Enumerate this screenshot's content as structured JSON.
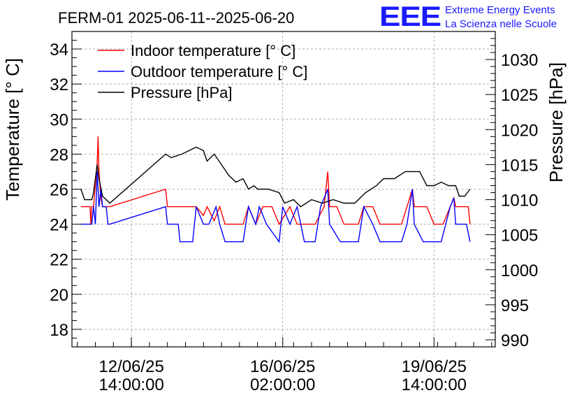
{
  "chart_data": {
    "type": "line",
    "title": "FERM-01 2025-06-11--2025-06-20",
    "logo": {
      "text": "EEE",
      "line1": "Extreme Energy Events",
      "line2": "La Scienza nelle Scuole",
      "color": "#1a1aff"
    },
    "xlabel": "",
    "ylabel_left": "Temperature [° C]",
    "ylabel_right": "Pressure [hPa]",
    "ylim_left": [
      17,
      35
    ],
    "ylim_right": [
      989,
      1034
    ],
    "yticks_left": [
      18,
      20,
      22,
      24,
      26,
      28,
      30,
      32,
      34
    ],
    "yticks_right": [
      990,
      995,
      1000,
      1005,
      1010,
      1015,
      1020,
      1025,
      1030
    ],
    "xlim": [
      "2025-06-11 05:00",
      "2025-06-21 00:00"
    ],
    "xticks": [
      {
        "x": "2025-06-12 14:00",
        "line1": "12/06/25",
        "line2": "14:00:00"
      },
      {
        "x": "2025-06-16 02:00",
        "line1": "16/06/25",
        "line2": "02:00:00"
      },
      {
        "x": "2025-06-19 14:00",
        "line1": "19/06/25",
        "line2": "14:00:00"
      }
    ],
    "grid": true,
    "legend_position": "top-left",
    "series": [
      {
        "name": "Indoor temperature [° C]",
        "axis": "left",
        "color": "#ff0000",
        "points": [
          [
            "2025-06-11 10:00",
            25
          ],
          [
            "2025-06-11 15:00",
            25
          ],
          [
            "2025-06-11 15:30",
            24
          ],
          [
            "2025-06-11 16:00",
            25
          ],
          [
            "2025-06-11 17:00",
            25
          ],
          [
            "2025-06-11 19:00",
            27.5
          ],
          [
            "2025-06-11 19:30",
            29
          ],
          [
            "2025-06-11 20:00",
            27
          ],
          [
            "2025-06-11 21:00",
            25.5
          ],
          [
            "2025-06-11 22:00",
            25
          ],
          [
            "2025-06-12 00:00",
            25
          ],
          [
            "2025-06-12 02:00",
            25
          ],
          [
            "2025-06-13 09:00",
            26
          ],
          [
            "2025-06-13 10:00",
            25
          ],
          [
            "2025-06-13 16:00",
            25
          ],
          [
            "2025-06-13 17:00",
            25
          ],
          [
            "2025-06-14 02:00",
            25
          ],
          [
            "2025-06-14 06:00",
            24.5
          ],
          [
            "2025-06-14 08:00",
            25
          ],
          [
            "2025-06-14 12:00",
            24.2
          ],
          [
            "2025-06-14 15:00",
            25
          ],
          [
            "2025-06-14 18:00",
            24
          ],
          [
            "2025-06-15 04:00",
            24
          ],
          [
            "2025-06-15 07:00",
            25
          ],
          [
            "2025-06-15 11:00",
            24
          ],
          [
            "2025-06-15 15:00",
            25
          ],
          [
            "2025-06-15 20:00",
            25
          ],
          [
            "2025-06-16 00:00",
            24
          ],
          [
            "2025-06-16 06:00",
            25
          ],
          [
            "2025-06-16 10:00",
            24
          ],
          [
            "2025-06-16 16:00",
            24
          ],
          [
            "2025-06-16 20:00",
            24
          ],
          [
            "2025-06-17 01:00",
            25
          ],
          [
            "2025-06-17 03:00",
            27
          ],
          [
            "2025-06-17 04:00",
            25
          ],
          [
            "2025-06-17 08:00",
            25
          ],
          [
            "2025-06-17 12:00",
            24
          ],
          [
            "2025-06-17 20:00",
            24
          ],
          [
            "2025-06-17 23:00",
            25
          ],
          [
            "2025-06-18 04:00",
            25
          ],
          [
            "2025-06-18 08:00",
            24
          ],
          [
            "2025-06-18 20:00",
            24
          ],
          [
            "2025-06-18 23:00",
            25
          ],
          [
            "2025-06-19 02:00",
            26
          ],
          [
            "2025-06-19 03:00",
            25
          ],
          [
            "2025-06-19 10:00",
            25
          ],
          [
            "2025-06-19 14:00",
            24
          ],
          [
            "2025-06-19 19:00",
            24
          ],
          [
            "2025-06-19 23:00",
            25
          ],
          [
            "2025-06-20 01:00",
            25.5
          ],
          [
            "2025-06-20 02:00",
            25
          ],
          [
            "2025-06-20 09:00",
            25
          ],
          [
            "2025-06-20 10:00",
            24
          ]
        ]
      },
      {
        "name": "Outdoor temperature [° C]",
        "axis": "left",
        "color": "#0000ff",
        "points": [
          [
            "2025-06-11 10:00",
            24
          ],
          [
            "2025-06-11 16:00",
            24
          ],
          [
            "2025-06-11 17:00",
            25
          ],
          [
            "2025-06-11 18:00",
            24
          ],
          [
            "2025-06-11 19:00",
            27
          ],
          [
            "2025-06-11 20:00",
            25
          ],
          [
            "2025-06-11 21:00",
            26
          ],
          [
            "2025-06-11 22:00",
            25
          ],
          [
            "2025-06-12 00:00",
            25
          ],
          [
            "2025-06-12 01:00",
            24
          ],
          [
            "2025-06-12 02:00",
            24
          ],
          [
            "2025-06-13 09:00",
            25
          ],
          [
            "2025-06-13 10:00",
            24
          ],
          [
            "2025-06-13 16:00",
            24
          ],
          [
            "2025-06-13 17:00",
            23
          ],
          [
            "2025-06-14 00:00",
            23
          ],
          [
            "2025-06-14 02:00",
            25
          ],
          [
            "2025-06-14 06:00",
            24
          ],
          [
            "2025-06-14 09:00",
            24
          ],
          [
            "2025-06-14 13:00",
            25
          ],
          [
            "2025-06-14 15:00",
            24
          ],
          [
            "2025-06-14 18:00",
            23
          ],
          [
            "2025-06-15 04:00",
            23
          ],
          [
            "2025-06-15 07:00",
            25
          ],
          [
            "2025-06-15 11:00",
            24
          ],
          [
            "2025-06-15 13:00",
            25
          ],
          [
            "2025-06-15 17:00",
            24
          ],
          [
            "2025-06-16 00:00",
            23
          ],
          [
            "2025-06-16 02:00",
            25
          ],
          [
            "2025-06-16 06:00",
            24
          ],
          [
            "2025-06-16 10:00",
            25
          ],
          [
            "2025-06-16 14:00",
            23
          ],
          [
            "2025-06-16 20:00",
            23
          ],
          [
            "2025-06-16 23:00",
            25
          ],
          [
            "2025-06-17 03:00",
            26
          ],
          [
            "2025-06-17 04:00",
            24
          ],
          [
            "2025-06-17 10:00",
            23
          ],
          [
            "2025-06-17 20:00",
            23
          ],
          [
            "2025-06-17 23:00",
            25
          ],
          [
            "2025-06-18 04:00",
            24
          ],
          [
            "2025-06-18 08:00",
            23
          ],
          [
            "2025-06-18 20:00",
            23
          ],
          [
            "2025-06-18 23:00",
            24
          ],
          [
            "2025-06-19 02:00",
            26
          ],
          [
            "2025-06-19 03:00",
            24
          ],
          [
            "2025-06-19 08:00",
            23
          ],
          [
            "2025-06-19 18:00",
            23
          ],
          [
            "2025-06-19 23:00",
            25
          ],
          [
            "2025-06-20 01:00",
            25.5
          ],
          [
            "2025-06-20 02:00",
            24
          ],
          [
            "2025-06-20 08:00",
            24
          ],
          [
            "2025-06-20 10:00",
            23
          ]
        ]
      },
      {
        "name": "Pressure [hPa]",
        "axis": "right",
        "color": "#000000",
        "points": [
          [
            "2025-06-11 10:00",
            1011.5
          ],
          [
            "2025-06-11 12:00",
            1010
          ],
          [
            "2025-06-11 16:00",
            1010
          ],
          [
            "2025-06-11 17:00",
            1011
          ],
          [
            "2025-06-11 18:00",
            1013
          ],
          [
            "2025-06-11 19:00",
            1015
          ],
          [
            "2025-06-11 20:00",
            1013
          ],
          [
            "2025-06-11 22:00",
            1010.5
          ],
          [
            "2025-06-12 02:00",
            1009.5
          ],
          [
            "2025-06-13 09:00",
            1016.5
          ],
          [
            "2025-06-13 12:00",
            1016
          ],
          [
            "2025-06-13 18:00",
            1016.5
          ],
          [
            "2025-06-13 22:00",
            1017
          ],
          [
            "2025-06-14 02:00",
            1017.5
          ],
          [
            "2025-06-14 06:00",
            1017
          ],
          [
            "2025-06-14 08:00",
            1015.5
          ],
          [
            "2025-06-14 12:00",
            1016.5
          ],
          [
            "2025-06-14 16:00",
            1015
          ],
          [
            "2025-06-14 20:00",
            1013.5
          ],
          [
            "2025-06-15 00:00",
            1012.5
          ],
          [
            "2025-06-15 04:00",
            1013
          ],
          [
            "2025-06-15 07:00",
            1011.5
          ],
          [
            "2025-06-15 10:00",
            1012
          ],
          [
            "2025-06-15 12:00",
            1011.5
          ],
          [
            "2025-06-15 18:00",
            1011.5
          ],
          [
            "2025-06-16 00:00",
            1011
          ],
          [
            "2025-06-16 03:00",
            1009.5
          ],
          [
            "2025-06-16 08:00",
            1010
          ],
          [
            "2025-06-16 12:00",
            1009
          ],
          [
            "2025-06-16 18:00",
            1010
          ],
          [
            "2025-06-17 00:00",
            1009.5
          ],
          [
            "2025-06-17 06:00",
            1010
          ],
          [
            "2025-06-17 12:00",
            1009.5
          ],
          [
            "2025-06-17 18:00",
            1009.5
          ],
          [
            "2025-06-18 00:00",
            1011
          ],
          [
            "2025-06-18 06:00",
            1012
          ],
          [
            "2025-06-18 10:00",
            1013
          ],
          [
            "2025-06-18 16:00",
            1013
          ],
          [
            "2025-06-18 22:00",
            1014
          ],
          [
            "2025-06-19 06:00",
            1014
          ],
          [
            "2025-06-19 10:00",
            1012
          ],
          [
            "2025-06-19 14:00",
            1012
          ],
          [
            "2025-06-19 18:00",
            1012.5
          ],
          [
            "2025-06-19 22:00",
            1012
          ],
          [
            "2025-06-20 02:00",
            1012
          ],
          [
            "2025-06-20 04:00",
            1010.5
          ],
          [
            "2025-06-20 07:00",
            1010.5
          ],
          [
            "2025-06-20 10:00",
            1011.5
          ]
        ]
      }
    ]
  }
}
